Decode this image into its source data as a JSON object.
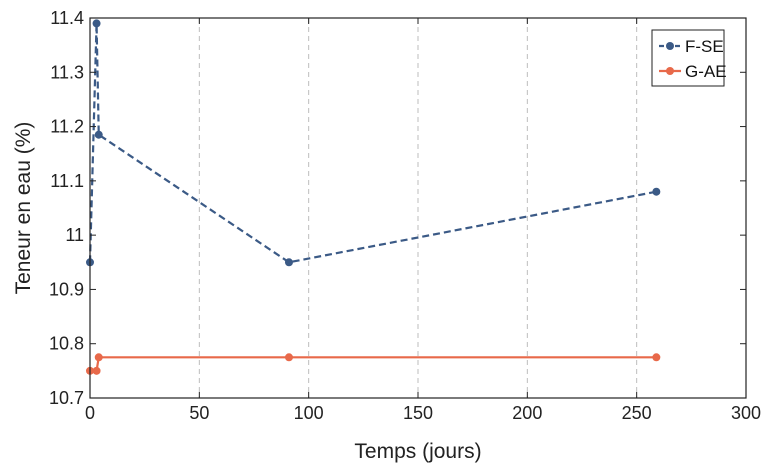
{
  "chart_data": {
    "type": "line",
    "title": "",
    "xlabel": "Temps (jours)",
    "ylabel": "Teneur en eau (%)",
    "xlim": [
      0,
      300
    ],
    "ylim": [
      10.7,
      11.4
    ],
    "x_ticks": [
      0,
      50,
      100,
      150,
      200,
      250,
      300
    ],
    "y_ticks": [
      10.7,
      10.8,
      10.9,
      11,
      11.1,
      11.2,
      11.3,
      11.4
    ],
    "x_tick_labels": [
      "0",
      "50",
      "100",
      "150",
      "200",
      "250",
      "300"
    ],
    "y_tick_labels": [
      "10.7",
      "10.8",
      "10.9",
      "11",
      "11.1",
      "11.2",
      "11.3",
      "11.4"
    ],
    "grid": "vertical dashed",
    "legend_position": "top-right",
    "series": [
      {
        "name": "F-SE",
        "color": "#3b5a86",
        "line_style": "dashed",
        "x": [
          0,
          3,
          4,
          91,
          259
        ],
        "y": [
          10.95,
          11.39,
          11.185,
          10.95,
          11.08
        ]
      },
      {
        "name": "G-AE",
        "color": "#e8694a",
        "line_style": "solid",
        "x": [
          0,
          3,
          4,
          91,
          259
        ],
        "y": [
          10.75,
          10.75,
          10.775,
          10.775,
          10.775
        ]
      }
    ]
  }
}
